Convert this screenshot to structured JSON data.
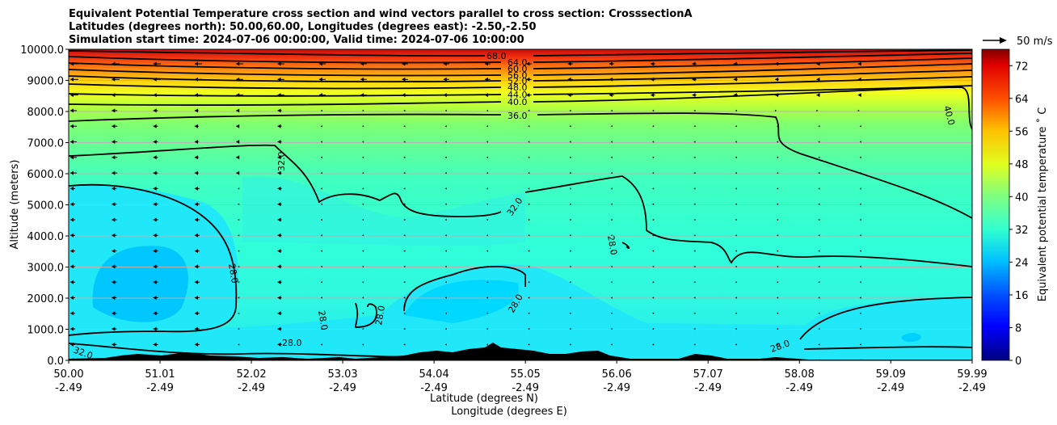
{
  "chart_data": {
    "type": "heatmap",
    "title_lines": [
      "Equivalent Potential Temperature cross section and wind vectors parallel to cross section: CrosssectionA",
      "Latitudes (degrees north): 50.00,60.00, Longitudes (degrees east): -2.50,-2.50",
      "Simulation start time: 2024-07-06 00:00:00, Valid time: 2024-07-06 10:00:00"
    ],
    "ylabel": "Altitude (meters)",
    "xlabel_lat": "Latitude (degrees N)",
    "xlabel_lon": "Longitude (degrees E)",
    "ylim": [
      0,
      10000
    ],
    "xlim": [
      50.0,
      59.99
    ],
    "y_ticks": [
      "0.0",
      "1000.0",
      "2000.0",
      "3000.0",
      "4000.0",
      "5000.0",
      "6000.0",
      "7000.0",
      "8000.0",
      "9000.0",
      "10000.0"
    ],
    "x_ticks": [
      {
        "lat": "50.00",
        "lon": "-2.49"
      },
      {
        "lat": "51.01",
        "lon": "-2.49"
      },
      {
        "lat": "52.02",
        "lon": "-2.49"
      },
      {
        "lat": "53.03",
        "lon": "-2.49"
      },
      {
        "lat": "54.04",
        "lon": "-2.49"
      },
      {
        "lat": "55.05",
        "lon": "-2.49"
      },
      {
        "lat": "56.06",
        "lon": "-2.49"
      },
      {
        "lat": "57.07",
        "lon": "-2.49"
      },
      {
        "lat": "58.08",
        "lon": "-2.49"
      },
      {
        "lat": "59.09",
        "lon": "-2.49"
      },
      {
        "lat": "59.99",
        "lon": "-2.49"
      }
    ],
    "grid": "horizontal",
    "colorbar": {
      "label": "Equivalent potential temperature ˚ C",
      "range": [
        0,
        76
      ],
      "ticks": [
        "0",
        "8",
        "16",
        "24",
        "32",
        "40",
        "48",
        "56",
        "64",
        "72"
      ]
    },
    "quiver_key": {
      "value": 50,
      "label": "50 m/s"
    },
    "contour_labels": [
      "68.0",
      "64.0",
      "60.0",
      "56.0",
      "52.0",
      "48.0",
      "44.0",
      "40.0",
      "36.0",
      "32.0",
      "32.0",
      "28.0",
      "28.0",
      "28.0",
      "28.0",
      "28.0",
      "28.0",
      "28.0",
      "32.0",
      "40.0"
    ],
    "colors": {
      "high": "#d01010",
      "mid_warm": "#f0f020",
      "mid": "#60ff80",
      "low": "#30ffd0",
      "cool": "#00c8ff",
      "terrain": "#000000"
    }
  }
}
